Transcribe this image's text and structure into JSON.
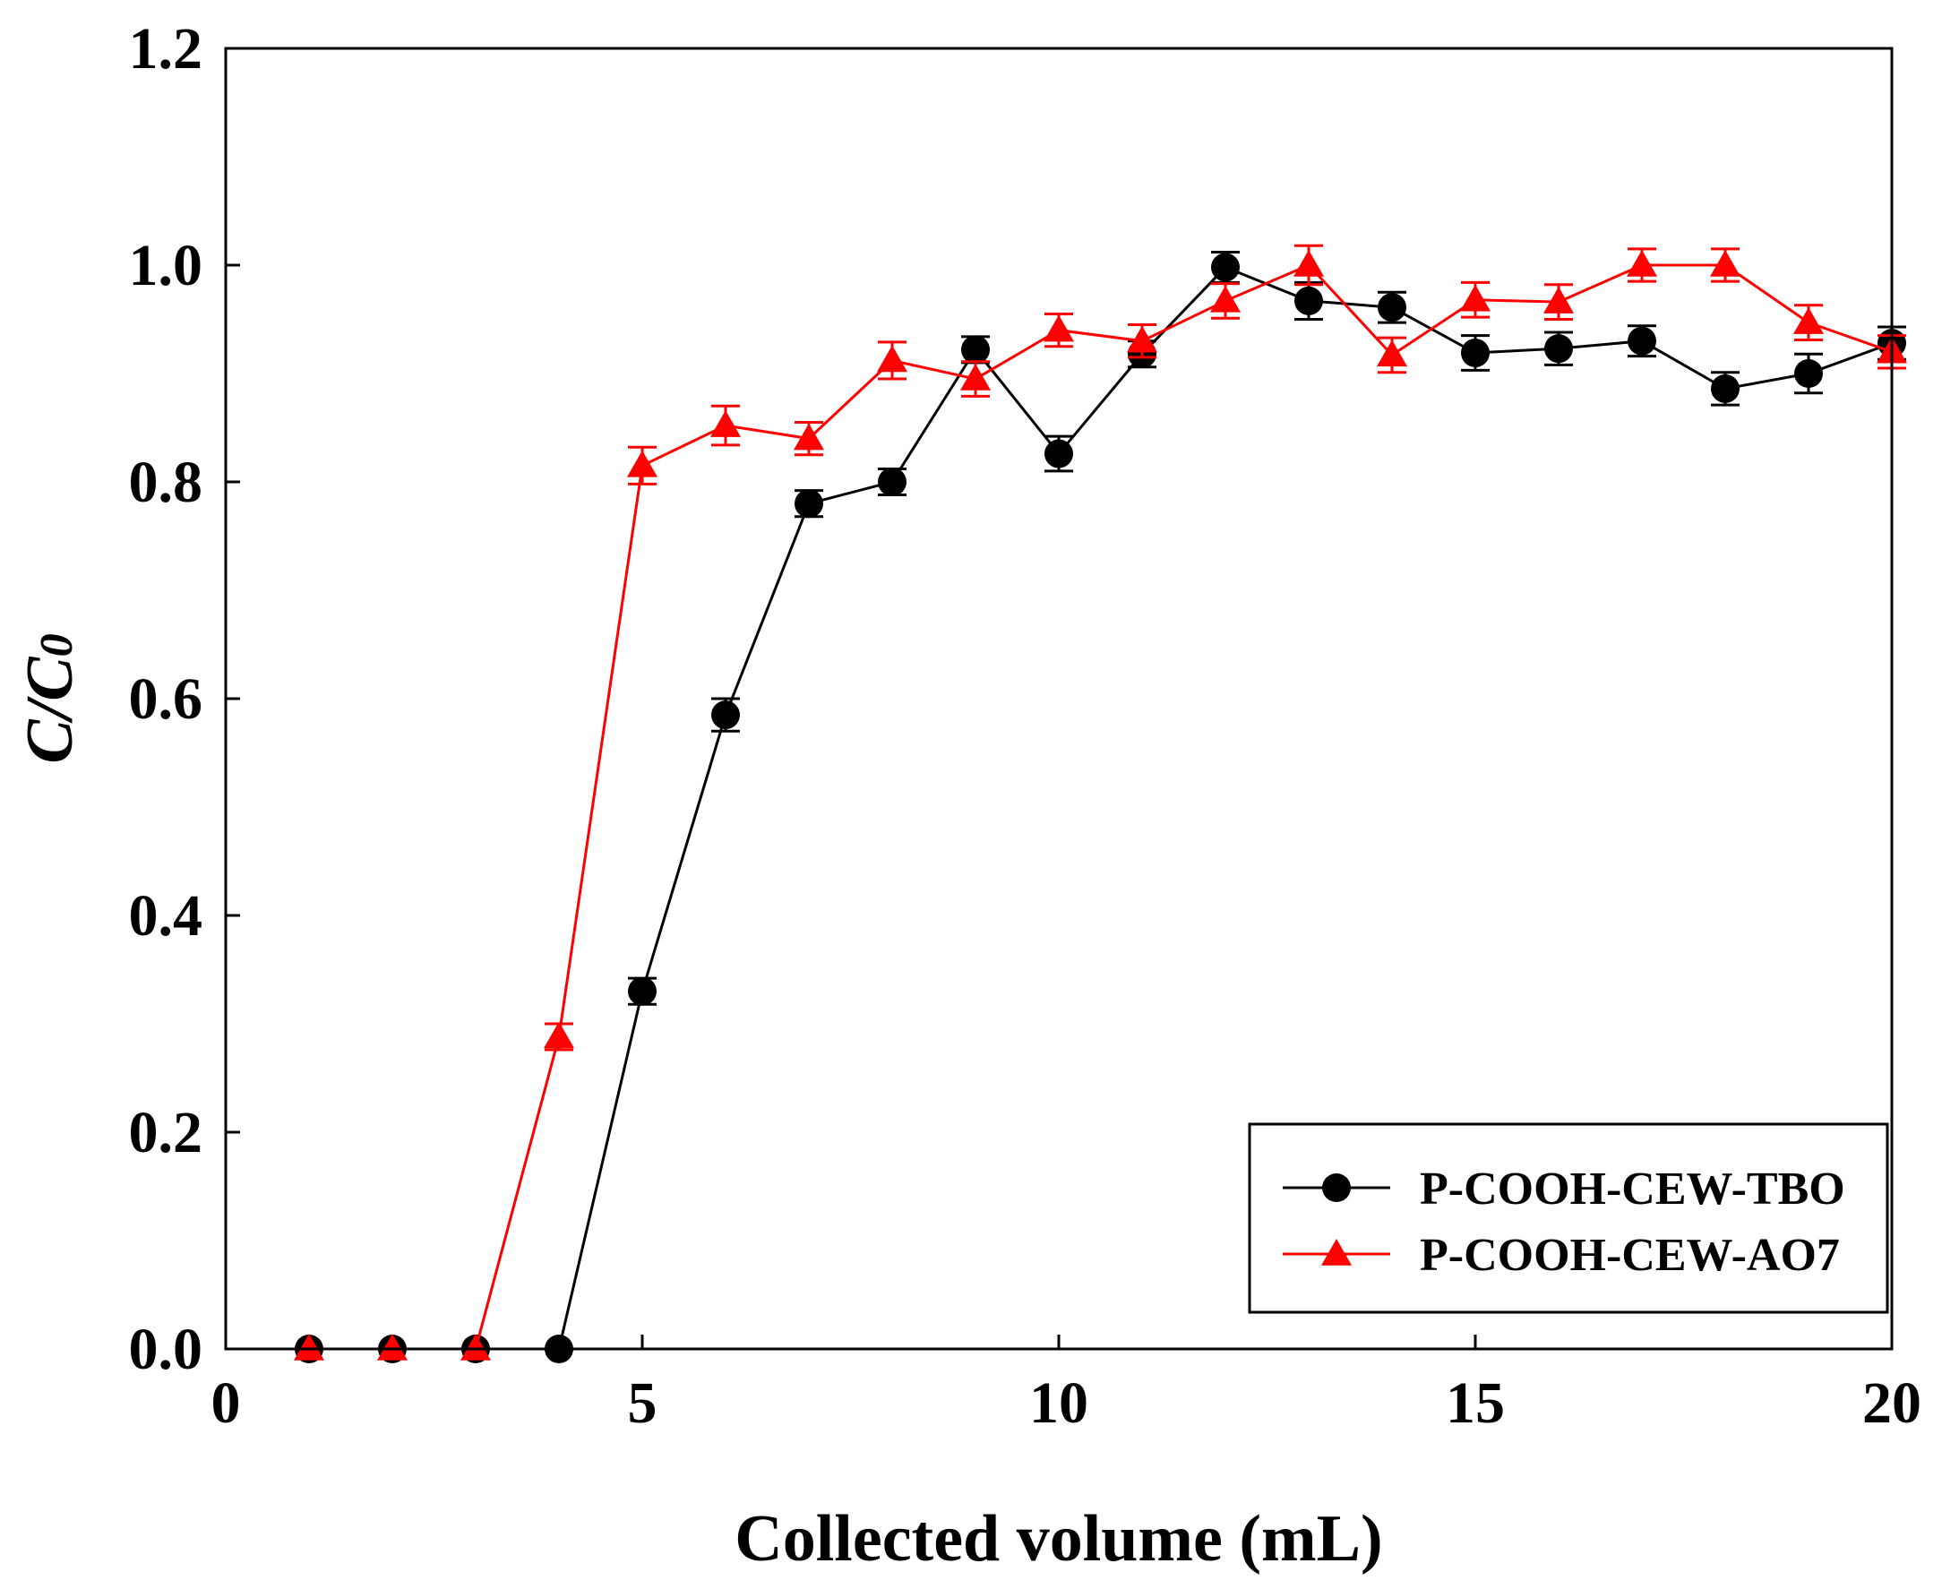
{
  "chart_data": {
    "type": "line",
    "title": "",
    "xlabel": "Collected volume (mL)",
    "ylabel": "C/C",
    "ylabel_subscript": "0",
    "xlim": [
      0,
      20
    ],
    "ylim": [
      0,
      1.2
    ],
    "xticks": [
      0,
      5,
      10,
      15,
      20
    ],
    "xtick_labels": [
      "0",
      "5",
      "10",
      "15",
      "20"
    ],
    "yticks": [
      0,
      0.2,
      0.4,
      0.6,
      0.8,
      1.0,
      1.2
    ],
    "ytick_labels": [
      "0.0",
      "0.2",
      "0.4",
      "0.6",
      "0.8",
      "1.0",
      "1.2"
    ],
    "grid": false,
    "legend_position": "bottom-right",
    "series": [
      {
        "name": "P-COOH-CEW-TBO",
        "color": "#000000",
        "marker": "circle",
        "x": [
          1,
          2,
          3,
          4,
          5,
          6,
          7,
          8,
          9,
          10,
          11,
          12,
          13,
          14,
          15,
          16,
          17,
          18,
          19,
          20
        ],
        "y": [
          0,
          0,
          0,
          0,
          0.33,
          0.585,
          0.78,
          0.8,
          0.922,
          0.826,
          0.918,
          0.998,
          0.967,
          0.961,
          0.919,
          0.923,
          0.93,
          0.886,
          0.9,
          0.928
        ],
        "err": [
          0,
          0,
          0,
          0,
          0.012,
          0.015,
          0.012,
          0.012,
          0.012,
          0.016,
          0.012,
          0.014,
          0.017,
          0.014,
          0.016,
          0.015,
          0.014,
          0.015,
          0.018,
          0.015
        ]
      },
      {
        "name": "P-COOH-CEW-AO7",
        "color": "#ff0000",
        "marker": "triangle",
        "x": [
          1,
          2,
          3,
          4,
          5,
          6,
          7,
          8,
          9,
          10,
          11,
          12,
          13,
          14,
          15,
          16,
          17,
          18,
          19,
          20
        ],
        "y": [
          0,
          0,
          0,
          0.288,
          0.815,
          0.852,
          0.84,
          0.912,
          0.895,
          0.94,
          0.93,
          0.967,
          1.0,
          0.917,
          0.968,
          0.966,
          1.0,
          1.0,
          0.947,
          0.92
        ],
        "err": [
          0,
          0,
          0,
          0.012,
          0.017,
          0.018,
          0.015,
          0.017,
          0.016,
          0.015,
          0.015,
          0.016,
          0.018,
          0.016,
          0.016,
          0.016,
          0.015,
          0.015,
          0.016,
          0.015
        ]
      }
    ]
  }
}
